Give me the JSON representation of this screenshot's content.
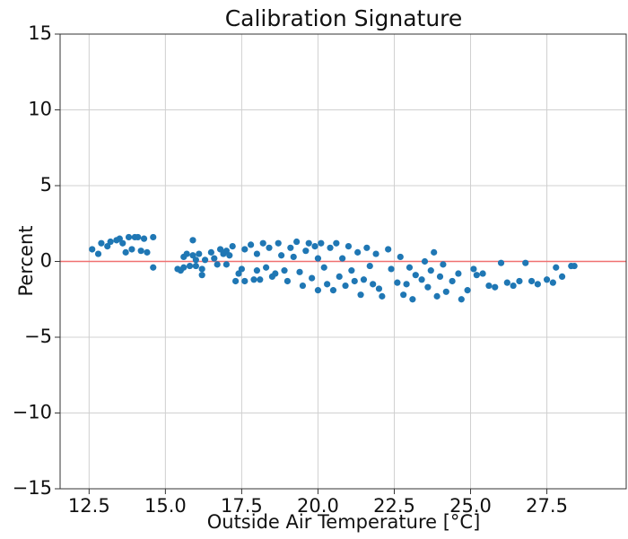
{
  "chart_data": {
    "type": "scatter",
    "title": "Calibration Signature",
    "xlabel": "Outside Air Temperature [°C]",
    "ylabel": "Percent",
    "color": "#1f77b4",
    "grid": true,
    "xlim": [
      11.55,
      30.1
    ],
    "ylim": [
      -15,
      15
    ],
    "xticks": [
      12.5,
      {
        "value": 15,
        "label": "15.0"
      },
      17.5,
      {
        "value": 20,
        "label": "20.0"
      },
      22.5,
      {
        "value": 25,
        "label": "25.0"
      },
      27.5
    ],
    "yticks": [
      {
        "value": -15,
        "label": "−15"
      },
      {
        "value": -10,
        "label": "−10"
      },
      {
        "value": -5,
        "label": "−5"
      },
      0,
      5,
      10,
      15
    ],
    "hline": {
      "value": 0,
      "color": "#f07070"
    },
    "x": [
      12.6,
      12.8,
      12.9,
      13.1,
      13.2,
      13.4,
      13.5,
      13.6,
      13.7,
      13.8,
      13.9,
      14.0,
      14.1,
      14.2,
      14.3,
      14.4,
      14.6,
      14.6,
      15.4,
      15.5,
      15.6,
      15.6,
      15.7,
      15.8,
      15.9,
      15.9,
      16.0,
      16.0,
      16.1,
      16.2,
      16.2,
      16.3,
      16.5,
      16.6,
      16.7,
      16.8,
      16.9,
      17.0,
      17.0,
      17.1,
      17.2,
      17.3,
      17.4,
      17.5,
      17.6,
      17.6,
      17.8,
      17.9,
      18.0,
      18.0,
      18.1,
      18.2,
      18.3,
      18.4,
      18.5,
      18.6,
      18.7,
      18.8,
      18.9,
      19.0,
      19.1,
      19.2,
      19.3,
      19.4,
      19.5,
      19.6,
      19.7,
      19.8,
      19.9,
      20.0,
      20.0,
      20.1,
      20.2,
      20.3,
      20.4,
      20.5,
      20.6,
      20.7,
      20.8,
      20.9,
      21.0,
      21.1,
      21.2,
      21.3,
      21.4,
      21.5,
      21.6,
      21.7,
      21.8,
      21.9,
      22.0,
      22.1,
      22.3,
      22.4,
      22.6,
      22.7,
      22.8,
      22.9,
      23.0,
      23.1,
      23.2,
      23.4,
      23.5,
      23.6,
      23.7,
      23.8,
      23.9,
      24.0,
      24.1,
      24.2,
      24.4,
      24.6,
      24.7,
      24.9,
      25.1,
      25.2,
      25.4,
      25.6,
      25.8,
      26.0,
      26.2,
      26.4,
      26.6,
      26.8,
      27.0,
      27.2,
      27.5,
      27.7,
      27.8,
      28.0,
      28.3,
      28.4
    ],
    "values": [
      0.8,
      0.5,
      1.2,
      1.0,
      1.3,
      1.4,
      1.5,
      1.2,
      0.6,
      1.6,
      0.8,
      1.6,
      1.6,
      0.7,
      1.5,
      0.6,
      1.6,
      -0.4,
      -0.5,
      -0.6,
      0.3,
      -0.4,
      0.5,
      -0.3,
      0.4,
      1.4,
      -0.3,
      0.1,
      0.5,
      -0.5,
      -0.9,
      0.1,
      0.6,
      0.2,
      -0.2,
      0.8,
      0.5,
      0.7,
      -0.2,
      0.4,
      1.0,
      -1.3,
      -0.8,
      -0.5,
      0.8,
      -1.3,
      1.1,
      -1.2,
      0.5,
      -0.6,
      -1.2,
      1.2,
      -0.4,
      0.9,
      -1.0,
      -0.8,
      1.2,
      0.4,
      -0.6,
      -1.3,
      0.9,
      0.3,
      1.3,
      -0.7,
      -1.6,
      0.7,
      1.2,
      -1.1,
      1.0,
      0.2,
      -1.9,
      1.2,
      -0.4,
      -1.5,
      0.9,
      -1.9,
      1.2,
      -1.0,
      0.2,
      -1.6,
      1.0,
      -0.6,
      -1.3,
      0.6,
      -2.2,
      -1.2,
      0.9,
      -0.3,
      -1.5,
      0.5,
      -1.8,
      -2.3,
      0.8,
      -0.5,
      -1.4,
      0.3,
      -2.2,
      -1.5,
      -0.4,
      -2.5,
      -0.9,
      -1.2,
      0.0,
      -1.7,
      -0.6,
      0.6,
      -2.3,
      -1.0,
      -0.2,
      -2.0,
      -1.3,
      -0.8,
      -2.5,
      -1.9,
      -0.5,
      -0.9,
      -0.8,
      -1.6,
      -1.7,
      -0.1,
      -1.4,
      -1.6,
      -1.3,
      -0.1,
      -1.3,
      -1.5,
      -1.2,
      -1.4,
      -0.4,
      -1.0,
      -0.3,
      -0.3
    ]
  }
}
